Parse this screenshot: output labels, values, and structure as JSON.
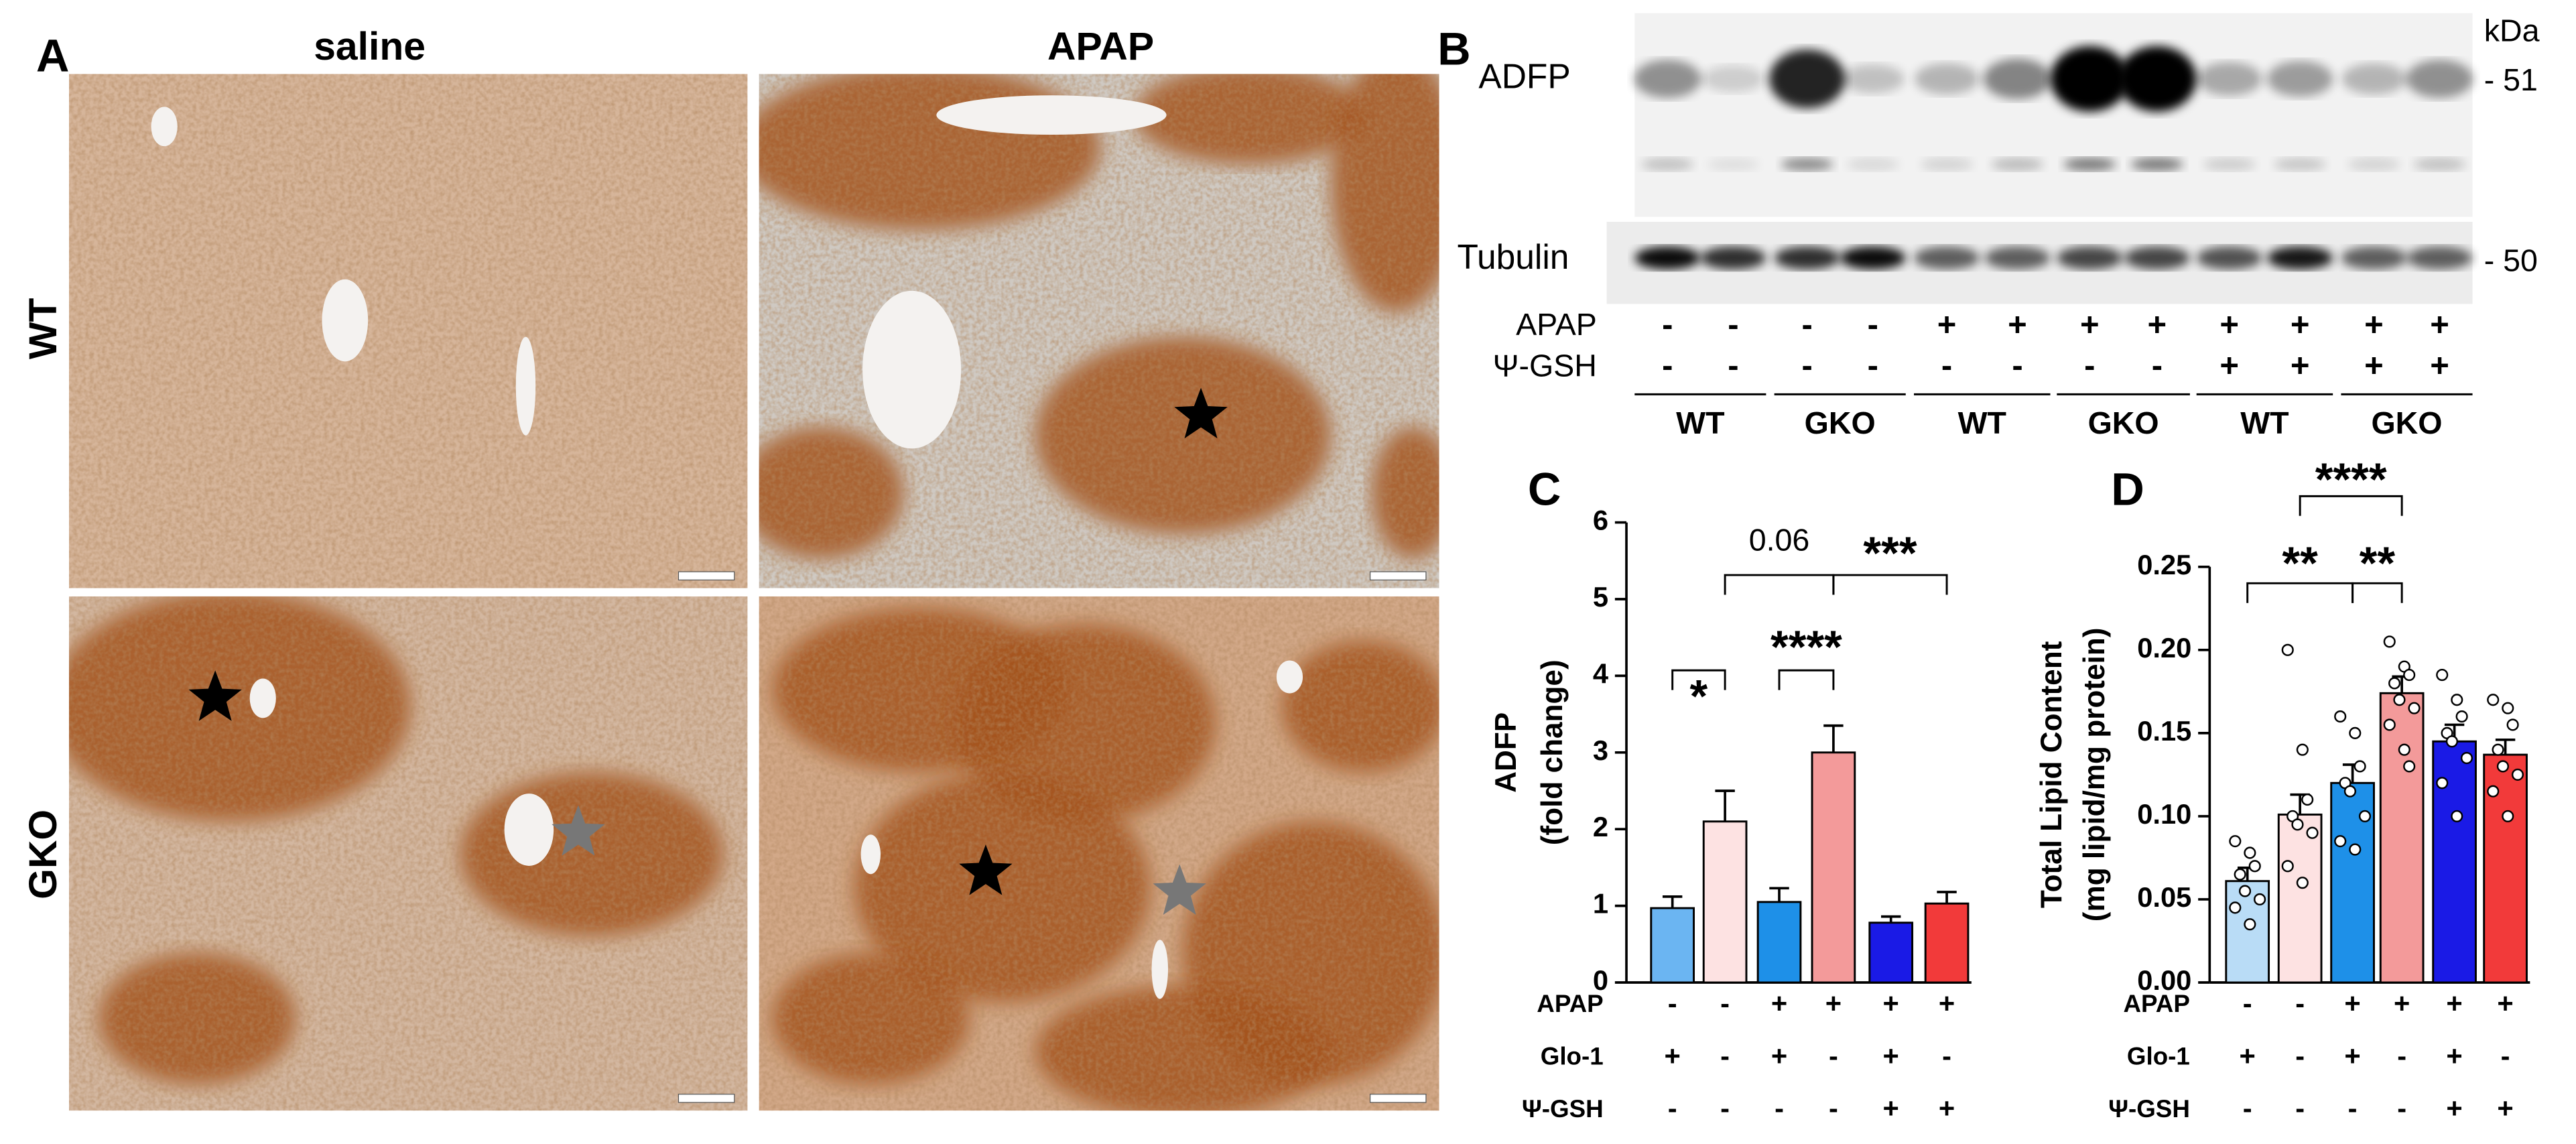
{
  "panel_a": {
    "label": "A",
    "columns": [
      "saline",
      "APAP"
    ],
    "rows": [
      "WT",
      "GKO"
    ]
  },
  "panel_b": {
    "label": "B",
    "unit": "kDa",
    "blots": [
      {
        "name": "ADFP",
        "marker": "- 51"
      },
      {
        "name": "Tubulin",
        "marker": "- 50"
      }
    ],
    "conditions": [
      {
        "name": "APAP",
        "signs": [
          "-",
          "-",
          "-",
          "-",
          "+",
          "+",
          "+",
          "+",
          "+",
          "+",
          "+",
          "+"
        ]
      },
      {
        "name": "Ψ-GSH",
        "signs": [
          "-",
          "-",
          "-",
          "-",
          "-",
          "-",
          "-",
          "-",
          "+",
          "+",
          "+",
          "+"
        ]
      }
    ],
    "groups": [
      "WT",
      "GKO",
      "WT",
      "GKO",
      "WT",
      "GKO"
    ]
  },
  "chart_data": [
    {
      "type": "bar",
      "label": "C",
      "y_label": [
        "ADFP",
        "(fold change)"
      ],
      "values": [
        0.97,
        2.1,
        1.05,
        3.0,
        0.78,
        1.03
      ],
      "errors": [
        0.15,
        0.4,
        0.18,
        0.35,
        0.08,
        0.15
      ],
      "colors": [
        "#6bb5f2",
        "#fde2e2",
        "#1e90e8",
        "#f39a9a",
        "#1a1ae6",
        "#f23a3a"
      ],
      "ylim": [
        0,
        6
      ],
      "yticks": [
        0,
        1,
        2,
        3,
        4,
        5,
        6
      ],
      "conditions": [
        {
          "name": "APAP",
          "signs": [
            "-",
            "-",
            "+",
            "+",
            "+",
            "+"
          ]
        },
        {
          "name": "Glo-1",
          "signs": [
            "+",
            "-",
            "+",
            "-",
            "+",
            "-"
          ]
        },
        {
          "name": "Ψ-GSH",
          "signs": [
            "-",
            "-",
            "-",
            "-",
            "+",
            "+"
          ]
        }
      ],
      "annotations": [
        "*",
        "0.06",
        "****",
        "***"
      ]
    },
    {
      "type": "bar",
      "label": "D",
      "y_label": [
        "Total Lipid Content",
        "(mg lipid/mg protein)"
      ],
      "values": [
        0.061,
        0.101,
        0.12,
        0.174,
        0.145,
        0.137
      ],
      "errors": [
        0.008,
        0.012,
        0.011,
        0.01,
        0.01,
        0.009
      ],
      "points": [
        [
          0.085,
          0.078,
          0.07,
          0.065,
          0.055,
          0.05,
          0.045,
          0.035
        ],
        [
          0.2,
          0.14,
          0.11,
          0.1,
          0.095,
          0.09,
          0.07,
          0.06
        ],
        [
          0.16,
          0.15,
          0.13,
          0.12,
          0.115,
          0.1,
          0.085,
          0.08
        ],
        [
          0.205,
          0.19,
          0.185,
          0.18,
          0.17,
          0.165,
          0.155,
          0.14,
          0.13
        ],
        [
          0.185,
          0.17,
          0.16,
          0.15,
          0.145,
          0.135,
          0.12,
          0.1
        ],
        [
          0.17,
          0.165,
          0.155,
          0.14,
          0.13,
          0.125,
          0.115,
          0.1
        ]
      ],
      "colors": [
        "#b9dcf6",
        "#fde2e2",
        "#1e90e8",
        "#f39a9a",
        "#1a1ae6",
        "#f23a3a"
      ],
      "ylim": [
        0,
        0.25
      ],
      "yticks": [
        {
          "value": 0,
          "label": "0.00"
        },
        0.05,
        {
          "value": 0.1,
          "label": "0.10"
        },
        0.15,
        {
          "value": 0.2,
          "label": "0.20"
        },
        0.25
      ],
      "conditions": [
        {
          "name": "APAP",
          "signs": [
            "-",
            "-",
            "+",
            "+",
            "+",
            "+"
          ]
        },
        {
          "name": "Glo-1",
          "signs": [
            "+",
            "-",
            "+",
            "-",
            "+",
            "-"
          ]
        },
        {
          "name": "Ψ-GSH",
          "signs": [
            "-",
            "-",
            "-",
            "-",
            "+",
            "+"
          ]
        }
      ],
      "annotations": [
        "****",
        "**",
        "**"
      ]
    }
  ]
}
